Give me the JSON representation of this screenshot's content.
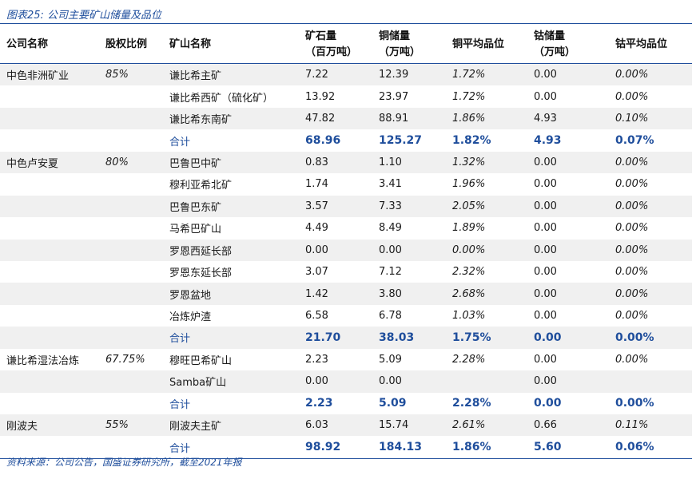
{
  "caption": "图表25:  公司主要矿山储量及品位",
  "headers": {
    "company": "公司名称",
    "stake": "股权比例",
    "mine": "矿山名称",
    "ore_line1": "矿石量",
    "ore_line2": "（百万吨）",
    "cu_line1": "铜储量",
    "cu_line2": "（万吨）",
    "cu_grade": "铜平均品位",
    "co_line1": "钴储量",
    "co_line2": "（万吨）",
    "co_grade": "钴平均品位"
  },
  "rows": [
    {
      "company": "中色非洲矿业",
      "stake": "85%",
      "mine": "谦比希主矿",
      "ore": "7.22",
      "cu": "12.39",
      "cu_grade": "1.72%",
      "co": "0.00",
      "co_grade": "0.00%"
    },
    {
      "company": "",
      "stake": "",
      "mine": "谦比希西矿（硫化矿）",
      "ore": "13.92",
      "cu": "23.97",
      "cu_grade": "1.72%",
      "co": "0.00",
      "co_grade": "0.00%"
    },
    {
      "company": "",
      "stake": "",
      "mine": "谦比希东南矿",
      "ore": "47.82",
      "cu": "88.91",
      "cu_grade": "1.86%",
      "co": "4.93",
      "co_grade": "0.10%"
    },
    {
      "company": "",
      "stake": "",
      "mine": "合计",
      "ore": "68.96",
      "cu": "125.27",
      "cu_grade": "1.82%",
      "co": "4.93",
      "co_grade": "0.07%",
      "total": true
    },
    {
      "company": "中色卢安夏",
      "stake": "80%",
      "mine": "巴鲁巴中矿",
      "ore": "0.83",
      "cu": "1.10",
      "cu_grade": "1.32%",
      "co": "0.00",
      "co_grade": "0.00%"
    },
    {
      "company": "",
      "stake": "",
      "mine": "穆利亚希北矿",
      "ore": "1.74",
      "cu": "3.41",
      "cu_grade": "1.96%",
      "co": "0.00",
      "co_grade": "0.00%"
    },
    {
      "company": "",
      "stake": "",
      "mine": "巴鲁巴东矿",
      "ore": "3.57",
      "cu": "7.33",
      "cu_grade": "2.05%",
      "co": "0.00",
      "co_grade": "0.00%"
    },
    {
      "company": "",
      "stake": "",
      "mine": "马希巴矿山",
      "ore": "4.49",
      "cu": "8.49",
      "cu_grade": "1.89%",
      "co": "0.00",
      "co_grade": "0.00%"
    },
    {
      "company": "",
      "stake": "",
      "mine": "罗恩西延长部",
      "ore": "0.00",
      "cu": "0.00",
      "cu_grade": "0.00%",
      "co": "0.00",
      "co_grade": "0.00%"
    },
    {
      "company": "",
      "stake": "",
      "mine": "罗恩东延长部",
      "ore": "3.07",
      "cu": "7.12",
      "cu_grade": "2.32%",
      "co": "0.00",
      "co_grade": "0.00%"
    },
    {
      "company": "",
      "stake": "",
      "mine": "罗恩盆地",
      "ore": "1.42",
      "cu": "3.80",
      "cu_grade": "2.68%",
      "co": "0.00",
      "co_grade": "0.00%"
    },
    {
      "company": "",
      "stake": "",
      "mine": "冶炼炉渣",
      "ore": "6.58",
      "cu": "6.78",
      "cu_grade": "1.03%",
      "co": "0.00",
      "co_grade": "0.00%"
    },
    {
      "company": "",
      "stake": "",
      "mine": "合计",
      "ore": "21.70",
      "cu": "38.03",
      "cu_grade": "1.75%",
      "co": "0.00",
      "co_grade": "0.00%",
      "total": true
    },
    {
      "company": "谦比希湿法冶炼",
      "stake": "67.75%",
      "mine": "穆旺巴希矿山",
      "ore": "2.23",
      "cu": "5.09",
      "cu_grade": "2.28%",
      "co": "0.00",
      "co_grade": "0.00%"
    },
    {
      "company": "",
      "stake": "",
      "mine": "Samba矿山",
      "ore": "0.00",
      "cu": "0.00",
      "cu_grade": "",
      "co": "0.00",
      "co_grade": ""
    },
    {
      "company": "",
      "stake": "",
      "mine": "合计",
      "ore": "2.23",
      "cu": "5.09",
      "cu_grade": "2.28%",
      "co": "0.00",
      "co_grade": "0.00%",
      "total": true
    },
    {
      "company": "刚波夫",
      "stake": "55%",
      "mine": "刚波夫主矿",
      "ore": "6.03",
      "cu": "15.74",
      "cu_grade": "2.61%",
      "co": "0.66",
      "co_grade": "0.11%"
    },
    {
      "company": "",
      "stake": "",
      "mine": "合计",
      "ore": "98.92",
      "cu": "184.13",
      "cu_grade": "1.86%",
      "co": "5.60",
      "co_grade": "0.06%",
      "total": true
    }
  ],
  "footer": "资料来源：公司公告，国盛证券研究所，截至2021年报"
}
